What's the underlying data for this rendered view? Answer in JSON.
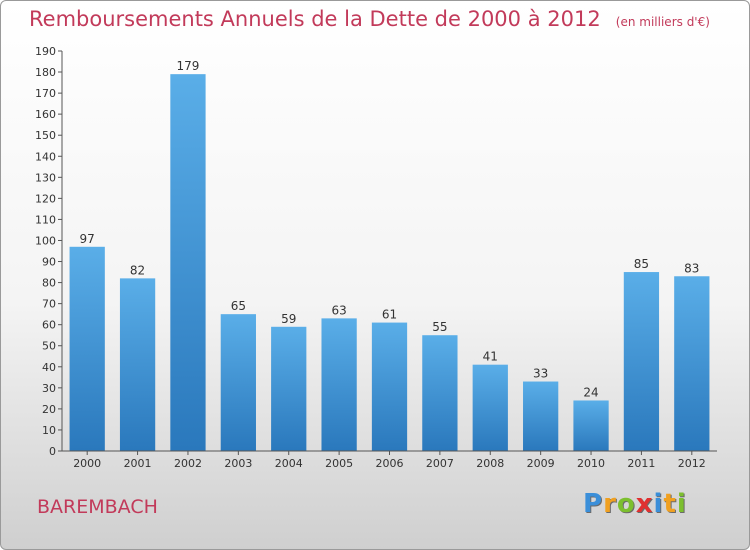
{
  "header": {
    "title": "Remboursements Annuels de la Dette de 2000 à 2012",
    "subtitle": "(en milliers d'€)"
  },
  "footer": {
    "town": "BAREMBACH",
    "logo": {
      "letters": [
        "P",
        "r",
        "o",
        "x",
        "i",
        "t",
        "i"
      ],
      "colors": [
        "#3b8fd9",
        "#f0a020",
        "#7cbf2e",
        "#e03030",
        "#3b8fd9",
        "#f0a020",
        "#7cbf2e"
      ]
    }
  },
  "chart_data": {
    "type": "bar",
    "title": "Remboursements Annuels de la Dette de 2000 à 2012",
    "categories": [
      "2000",
      "2001",
      "2002",
      "2003",
      "2004",
      "2005",
      "2006",
      "2007",
      "2008",
      "2009",
      "2010",
      "2011",
      "2012"
    ],
    "values": [
      97,
      82,
      179,
      65,
      59,
      63,
      61,
      55,
      41,
      33,
      24,
      85,
      83
    ],
    "ylim": [
      0,
      190
    ],
    "ytick_step": 10,
    "grid": false,
    "bar_color_top": "#5aaee8",
    "bar_color_bottom": "#2a78bc",
    "xlabel": "",
    "ylabel": ""
  }
}
